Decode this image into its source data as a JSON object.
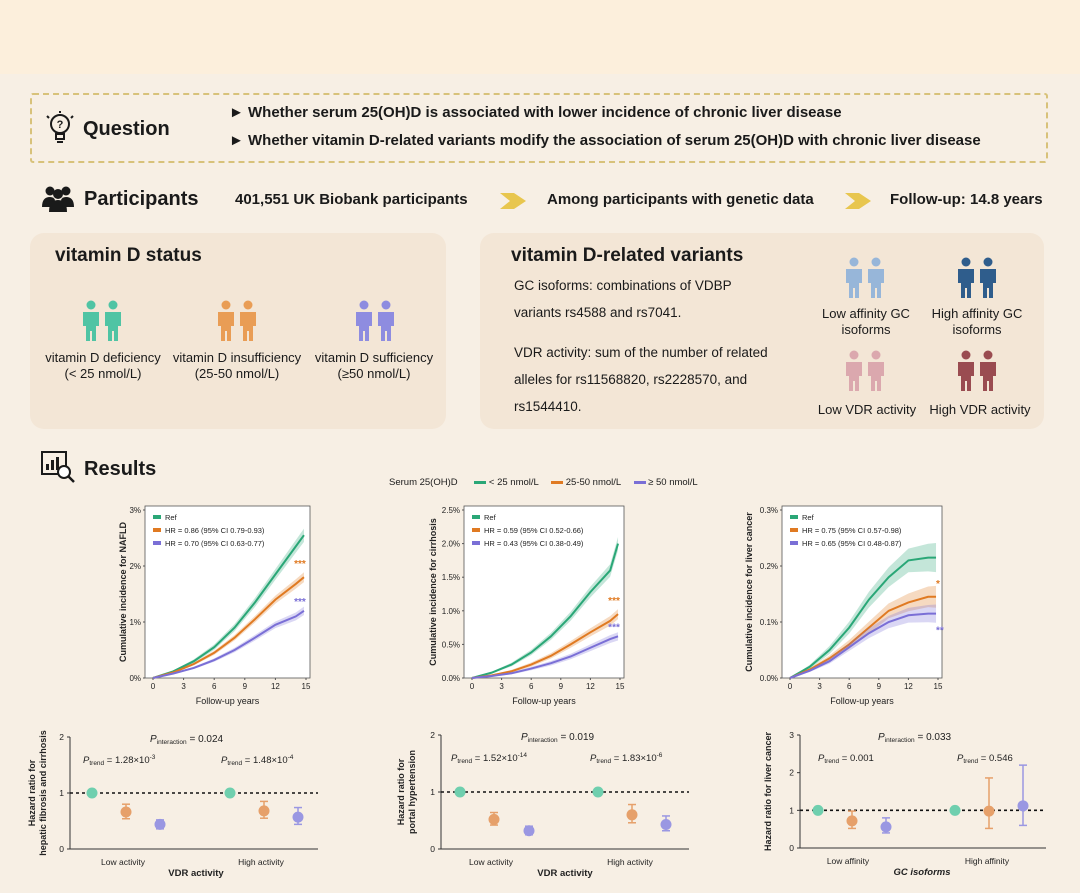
{
  "question": {
    "label": "Question",
    "items": [
      "Whether serum 25(OH)D is associated with lower incidence of chronic liver disease",
      "Whether vitamin D-related variants modify the association of serum 25(OH)D with chronic liver disease"
    ]
  },
  "participants": {
    "label": "Participants",
    "steps": [
      "401,551 UK Biobank participants",
      "Among participants with genetic data",
      "Follow-up: 14.8 years"
    ]
  },
  "vitd": {
    "title": "vitamin D status",
    "groups": [
      {
        "line1": "vitamin D deficiency",
        "line2": "(< 25 nmol/L)",
        "color": "#4fc4a4"
      },
      {
        "line1": "vitamin D insufficiency",
        "line2": "(25-50 nmol/L)",
        "color": "#e99d55"
      },
      {
        "line1": "vitamin D sufficiency",
        "line2": "(≥50 nmol/L)",
        "color": "#8e8ce0"
      }
    ]
  },
  "variants": {
    "title": "vitamin D-related variants",
    "gc_lines": [
      "GC isoforms: combinations of VDBP",
      "variants rs4588 and rs7041."
    ],
    "vdr_lines": [
      "VDR activity: sum of the number of related",
      "alleles for rs11568820, rs2228570, and",
      "rs1544410."
    ],
    "icons": [
      {
        "line1": "Low affinity GC",
        "line2": "isoforms",
        "color": "#97b6d9"
      },
      {
        "line1": "High affinity GC",
        "line2": "isoforms",
        "color": "#2f5d8c"
      },
      {
        "line1": "Low VDR activity",
        "line2": "",
        "color": "#dba8ae"
      },
      {
        "line1": "High VDR activity",
        "line2": "",
        "color": "#9a4c51"
      }
    ]
  },
  "results": {
    "label": "Results"
  },
  "serum_legend": {
    "title": "Serum 25(OH)D",
    "items": [
      {
        "label": "< 25 nmol/L",
        "color": "#2aa777"
      },
      {
        "label": "25-50 nmol/L",
        "color": "#e07a22"
      },
      {
        "label": "≥ 50 nmol/L",
        "color": "#7a6fd6"
      }
    ]
  },
  "chart_data": [
    {
      "type": "line",
      "title": "",
      "ylabel": "Cumulative incidence for NAFLD",
      "xlabel": "Follow-up years",
      "xticks": [
        0,
        3,
        6,
        9,
        12,
        15
      ],
      "yticks": [
        "0%",
        "1%",
        "2%",
        "3%"
      ],
      "ylim": [
        0,
        3
      ],
      "xlim": [
        0,
        15
      ],
      "legend": [
        "Ref",
        "HR = 0.86 (95% CI 0.79-0.93)",
        "HR = 0.70 (95% CI 0.63-0.77)"
      ],
      "significance": [
        "***",
        "***"
      ],
      "x": [
        0,
        2,
        4,
        6,
        8,
        10,
        12,
        14,
        14.8
      ],
      "series": [
        {
          "values": [
            0,
            0.12,
            0.3,
            0.55,
            0.9,
            1.35,
            1.85,
            2.35,
            2.55
          ]
        },
        {
          "values": [
            0,
            0.1,
            0.25,
            0.45,
            0.72,
            1.05,
            1.4,
            1.68,
            1.8
          ]
        },
        {
          "values": [
            0,
            0.08,
            0.18,
            0.32,
            0.5,
            0.72,
            0.95,
            1.1,
            1.2
          ]
        }
      ]
    },
    {
      "type": "line",
      "title": "",
      "ylabel": "Cumulative incidence for cirrhosis",
      "xlabel": "Follow-up years",
      "xticks": [
        0,
        3,
        6,
        9,
        12,
        15
      ],
      "yticks": [
        "0.0%",
        "0.5%",
        "1.0%",
        "1.5%",
        "2.0%",
        "2.5%"
      ],
      "ylim": [
        0,
        2.5
      ],
      "xlim": [
        0,
        15
      ],
      "legend": [
        "Ref",
        "HR = 0.59 (95% CI 0.52-0.66)",
        "HR = 0.43 (95% CI 0.38-0.49)"
      ],
      "significance": [
        "***",
        "***"
      ],
      "x": [
        0,
        2,
        4,
        6,
        8,
        10,
        12,
        14,
        14.8
      ],
      "series": [
        {
          "values": [
            0,
            0.08,
            0.2,
            0.38,
            0.62,
            0.92,
            1.28,
            1.6,
            2.0
          ]
        },
        {
          "values": [
            0,
            0.04,
            0.1,
            0.2,
            0.33,
            0.5,
            0.68,
            0.85,
            0.95
          ]
        },
        {
          "values": [
            0,
            0.03,
            0.07,
            0.14,
            0.22,
            0.32,
            0.45,
            0.58,
            0.62
          ]
        }
      ]
    },
    {
      "type": "line",
      "title": "",
      "ylabel": "Cumulative incidence for liver cancer",
      "xlabel": "Follow-up years",
      "xticks": [
        0,
        3,
        6,
        9,
        12,
        15
      ],
      "yticks": [
        "0.0%",
        "0.1%",
        "0.2%",
        "0.3%"
      ],
      "ylim": [
        0,
        0.3
      ],
      "xlim": [
        0,
        15
      ],
      "legend": [
        "Ref",
        "HR = 0.75 (95% CI 0.57-0.98)",
        "HR = 0.65 (95% CI 0.48-0.87)"
      ],
      "significance": [
        "*",
        "**"
      ],
      "x": [
        0,
        2,
        4,
        6,
        8,
        10,
        12,
        14,
        14.8
      ],
      "series": [
        {
          "values": [
            0,
            0.02,
            0.05,
            0.09,
            0.14,
            0.18,
            0.21,
            0.215,
            0.215
          ]
        },
        {
          "values": [
            0,
            0.015,
            0.035,
            0.06,
            0.09,
            0.12,
            0.135,
            0.145,
            0.145
          ]
        },
        {
          "values": [
            0,
            0.013,
            0.03,
            0.055,
            0.08,
            0.1,
            0.112,
            0.115,
            0.115
          ]
        }
      ]
    },
    {
      "type": "scatter",
      "ylabel": "Hazard ratio for hepatic fibrosis and cirrhosis",
      "xlabel": "VDR activity",
      "categories": [
        "Low activity",
        "High activity"
      ],
      "ylim": [
        0,
        2
      ],
      "yticks": [
        "0",
        "1",
        "2"
      ],
      "p_interaction": "= 0.024",
      "p_trend": [
        "= 1.28×10",
        "= 1.48×10"
      ],
      "p_trend_exp": [
        "-3",
        "-4"
      ],
      "groups": [
        {
          "points": [
            {
              "hr": 1.0,
              "lo": 1.0,
              "hi": 1.0
            },
            {
              "hr": 0.66,
              "lo": 0.54,
              "hi": 0.8
            },
            {
              "hr": 0.44,
              "lo": 0.36,
              "hi": 0.52
            }
          ]
        },
        {
          "points": [
            {
              "hr": 1.0,
              "lo": 1.0,
              "hi": 1.0
            },
            {
              "hr": 0.68,
              "lo": 0.55,
              "hi": 0.85
            },
            {
              "hr": 0.57,
              "lo": 0.44,
              "hi": 0.74
            }
          ]
        }
      ]
    },
    {
      "type": "scatter",
      "ylabel": "Hazard ratio for portal hypertension",
      "xlabel": "VDR activity",
      "categories": [
        "Low activity",
        "High activity"
      ],
      "ylim": [
        0,
        2
      ],
      "yticks": [
        "0",
        "1",
        "2"
      ],
      "p_interaction": "= 0.019",
      "p_trend": [
        "= 1.52×10",
        "= 1.83×10"
      ],
      "p_trend_exp": [
        "-14",
        "-6"
      ],
      "groups": [
        {
          "points": [
            {
              "hr": 1.0,
              "lo": 1.0,
              "hi": 1.0
            },
            {
              "hr": 0.52,
              "lo": 0.42,
              "hi": 0.64
            },
            {
              "hr": 0.32,
              "lo": 0.25,
              "hi": 0.4
            }
          ]
        },
        {
          "points": [
            {
              "hr": 1.0,
              "lo": 1.0,
              "hi": 1.0
            },
            {
              "hr": 0.6,
              "lo": 0.46,
              "hi": 0.78
            },
            {
              "hr": 0.43,
              "lo": 0.32,
              "hi": 0.58
            }
          ]
        }
      ]
    },
    {
      "type": "scatter",
      "ylabel": "Hazard ratio for liver cancer",
      "xlabel": "GC isoforms",
      "categories": [
        "Low affinity",
        "High affinity"
      ],
      "ylim": [
        0,
        3
      ],
      "yticks": [
        "0",
        "1",
        "2",
        "3"
      ],
      "p_interaction": "= 0.033",
      "p_trend": [
        "= 0.001",
        "= 0.546"
      ],
      "p_trend_exp": [
        "",
        ""
      ],
      "groups": [
        {
          "points": [
            {
              "hr": 1.0,
              "lo": 1.0,
              "hi": 1.0
            },
            {
              "hr": 0.72,
              "lo": 0.52,
              "hi": 0.98
            },
            {
              "hr": 0.56,
              "lo": 0.4,
              "hi": 0.8
            }
          ]
        },
        {
          "points": [
            {
              "hr": 1.0,
              "lo": 1.0,
              "hi": 1.0
            },
            {
              "hr": 0.98,
              "lo": 0.52,
              "hi": 1.86
            },
            {
              "hr": 1.12,
              "lo": 0.6,
              "hi": 2.2
            }
          ]
        }
      ]
    }
  ],
  "colors": {
    "green": "#2aa777",
    "orange": "#e07a22",
    "purple": "#7a6fd6",
    "dot_green": "#6fcfae",
    "dot_orange": "#e6a06a",
    "dot_purple": "#9a97e2"
  }
}
